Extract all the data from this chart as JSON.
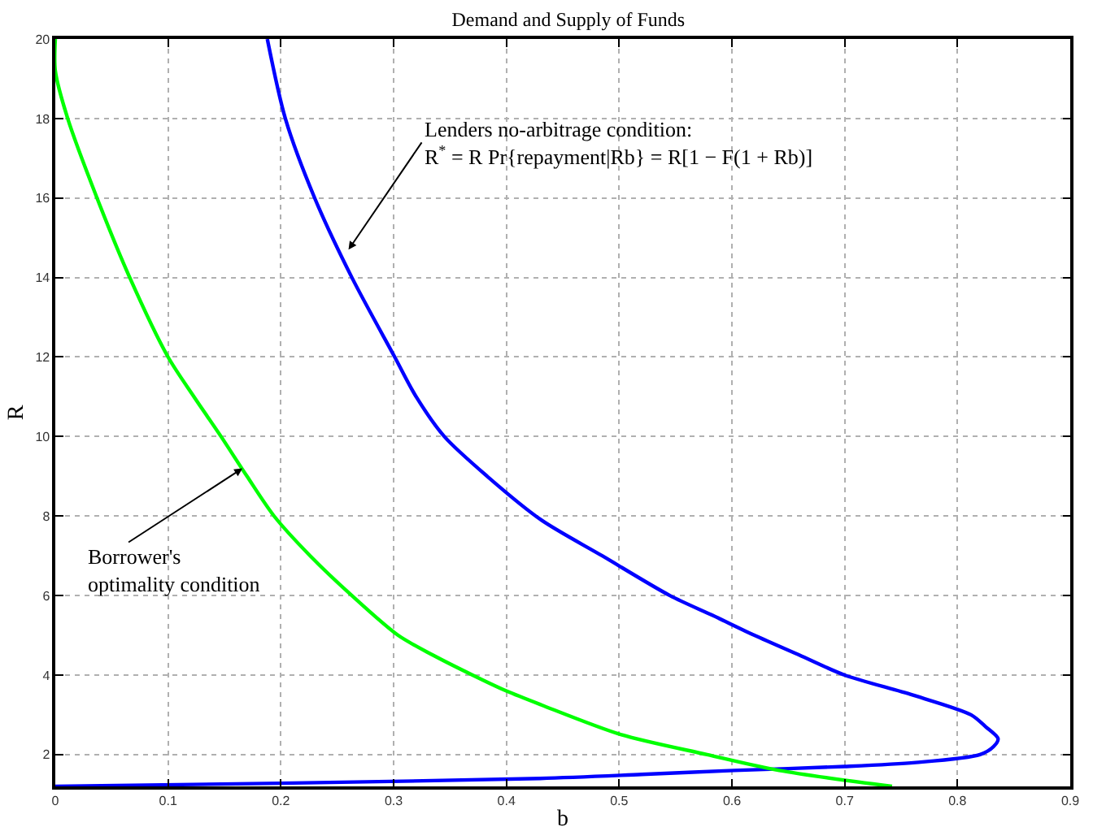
{
  "chart_data": {
    "type": "line",
    "title": "Demand and Supply of Funds",
    "xlabel": "b",
    "ylabel": "R",
    "xlim": [
      0,
      0.9
    ],
    "xticks": [
      0,
      0.1,
      0.2,
      0.3,
      0.4,
      0.5,
      0.6,
      0.7,
      0.8,
      0.9
    ],
    "ylim": [
      1.2,
      20
    ],
    "yticks": [
      2,
      4,
      6,
      8,
      10,
      12,
      14,
      16,
      18,
      20
    ],
    "grid": true,
    "marker": "none",
    "line_style": "solid",
    "series": [
      {
        "color": "#0000ff",
        "x": [
          0.188,
          0.204,
          0.23,
          0.263,
          0.301,
          0.32,
          0.345,
          0.383,
          0.431,
          0.485,
          0.545,
          0.583,
          0.62,
          0.66,
          0.7,
          0.76,
          0.812,
          0.825,
          0.836,
          0.832,
          0.82,
          0.763,
          0.7,
          0.602,
          0.52,
          0.43,
          0.2,
          0
        ],
        "values": [
          20,
          18,
          16,
          14,
          12,
          11,
          10,
          9,
          7.9,
          7,
          6,
          5.5,
          5,
          4.5,
          4,
          3.5,
          3,
          2.7,
          2.4,
          2.2,
          2,
          1.8,
          1.7,
          1.6,
          1.5,
          1.4,
          1.28,
          1.2
        ]
      },
      {
        "color": "#00ff00",
        "x": [
          0,
          0,
          0.011,
          0.037,
          0.066,
          0.1,
          0.123,
          0.147,
          0.17,
          0.194,
          0.226,
          0.263,
          0.304,
          0.335,
          0.37,
          0.4,
          0.431,
          0.502,
          0.578,
          0.642,
          0.742
        ],
        "values": [
          20,
          19.2,
          18,
          16,
          14,
          12,
          11,
          10,
          9,
          8,
          7,
          6,
          5,
          4.5,
          4,
          3.6,
          3.25,
          2.5,
          2,
          1.6,
          1.2
        ]
      }
    ],
    "annotations": [
      {
        "text": "Lenders no-arbitrage condition:\nR$^{*}$ = R Pr{repayment|Rb} = R[1 − F(1 + Rb)]",
        "x": 0.26,
        "y": 14.7
      },
      {
        "text": "Borrower's\noptimality condition",
        "x": 0.166,
        "y": 9.2
      }
    ]
  }
}
